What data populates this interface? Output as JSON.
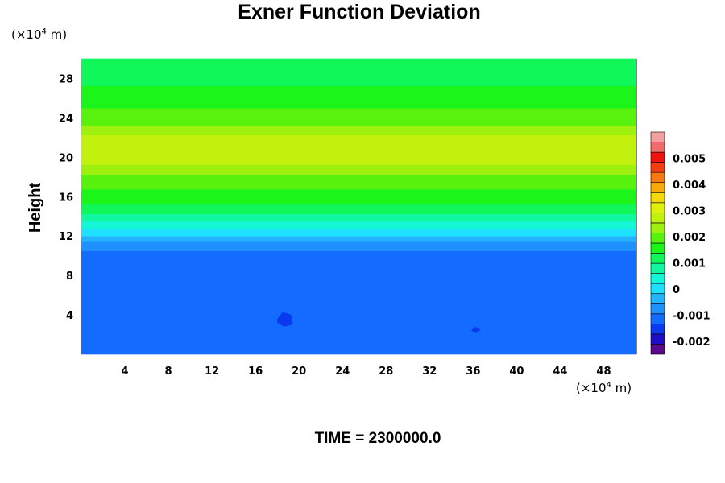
{
  "chart_data": {
    "type": "heatmap",
    "title": "Exner Function Deviation",
    "ylabel": "Height",
    "x_unit": {
      "prefix": "(×10",
      "exp": "4",
      "suffix": " m)"
    },
    "y_unit": {
      "prefix": "(×10",
      "exp": "4",
      "suffix": " m)"
    },
    "xlim": [
      0,
      51
    ],
    "ylim": [
      0,
      30
    ],
    "x_ticks": [
      4,
      8,
      12,
      16,
      20,
      24,
      28,
      32,
      36,
      40,
      44,
      48
    ],
    "y_ticks": [
      4,
      8,
      12,
      16,
      20,
      24,
      28
    ],
    "colorbar": {
      "min": -0.0025,
      "max": 0.006,
      "ticks": [
        -0.002,
        -0.001,
        0,
        0.001,
        0.002,
        0.003,
        0.004,
        0.005
      ],
      "tick_labels": [
        "-0.002",
        "-0.001",
        "0",
        "0.001",
        "0.002",
        "0.003",
        "0.004",
        "0.005"
      ],
      "colors": [
        "#5a0b8a",
        "#1f0fc4",
        "#0a39ee",
        "#146cff",
        "#1f91ff",
        "#24b4ff",
        "#1ee0ff",
        "#14f6d8",
        "#11f7a0",
        "#10f75a",
        "#1bf51a",
        "#58f20e",
        "#9ef00e",
        "#c2f10e",
        "#dff00a",
        "#f5d80a",
        "#f8a90c",
        "#f77a10",
        "#f43e10",
        "#ef1410",
        "#f06c6c",
        "#f5a0a0"
      ]
    },
    "vertical_profile": [
      {
        "y": 0,
        "value": -0.0012
      },
      {
        "y": 10,
        "value": -0.0011
      },
      {
        "y": 11,
        "value": -0.0008
      },
      {
        "y": 12,
        "value": -0.0002
      },
      {
        "y": 13,
        "value": 0.0003
      },
      {
        "y": 14,
        "value": 0.0009
      },
      {
        "y": 16,
        "value": 0.0016
      },
      {
        "y": 18,
        "value": 0.002
      },
      {
        "y": 20,
        "value": 0.0028
      },
      {
        "y": 22,
        "value": 0.0026
      },
      {
        "y": 24,
        "value": 0.0019
      },
      {
        "y": 26,
        "value": 0.0016
      },
      {
        "y": 28,
        "value": 0.0012
      },
      {
        "y": 30,
        "value": 0.001
      }
    ],
    "low_regions_value": -0.0013,
    "low_regions": [
      [
        [
          3,
          10.1
        ],
        [
          14,
          10.1
        ],
        [
          14.5,
          9.8
        ],
        [
          14,
          8
        ],
        [
          14,
          5
        ],
        [
          12,
          4
        ],
        [
          10,
          0
        ],
        [
          6,
          0
        ],
        [
          4,
          4
        ],
        [
          3.5,
          8
        ]
      ],
      [
        [
          14,
          10.1
        ],
        [
          22,
          10
        ],
        [
          22.5,
          8
        ],
        [
          22.5,
          4
        ],
        [
          21.5,
          0
        ],
        [
          17,
          0
        ],
        [
          17,
          4
        ],
        [
          16,
          6
        ],
        [
          14.5,
          8
        ]
      ],
      [
        [
          26,
          4
        ],
        [
          28,
          5
        ],
        [
          30,
          4
        ],
        [
          33,
          3
        ],
        [
          34,
          5
        ],
        [
          34,
          6
        ],
        [
          35,
          7
        ],
        [
          36,
          6
        ],
        [
          37,
          4.5
        ],
        [
          38,
          4
        ],
        [
          40,
          3
        ],
        [
          43,
          4
        ],
        [
          44,
          4
        ],
        [
          45,
          4.5
        ],
        [
          46,
          6
        ],
        [
          48,
          6
        ],
        [
          51,
          4
        ],
        [
          51,
          2
        ],
        [
          47,
          2
        ],
        [
          44,
          1
        ],
        [
          41,
          0
        ],
        [
          37,
          0
        ],
        [
          34,
          1
        ],
        [
          32,
          2
        ],
        [
          30,
          2
        ],
        [
          27,
          1.5
        ]
      ]
    ],
    "lower_regions_value": -0.0016,
    "lower_regions": [
      [
        [
          18,
          3.6
        ],
        [
          18.5,
          4.3
        ],
        [
          19.3,
          4.0
        ],
        [
          19.4,
          3.0
        ],
        [
          18.6,
          2.8
        ],
        [
          18.0,
          3.2
        ]
      ],
      [
        [
          35.8,
          2.4
        ],
        [
          36.2,
          2.8
        ],
        [
          36.7,
          2.5
        ],
        [
          36.3,
          2.1
        ]
      ]
    ],
    "time_label": "TIME = 2300000.0"
  }
}
